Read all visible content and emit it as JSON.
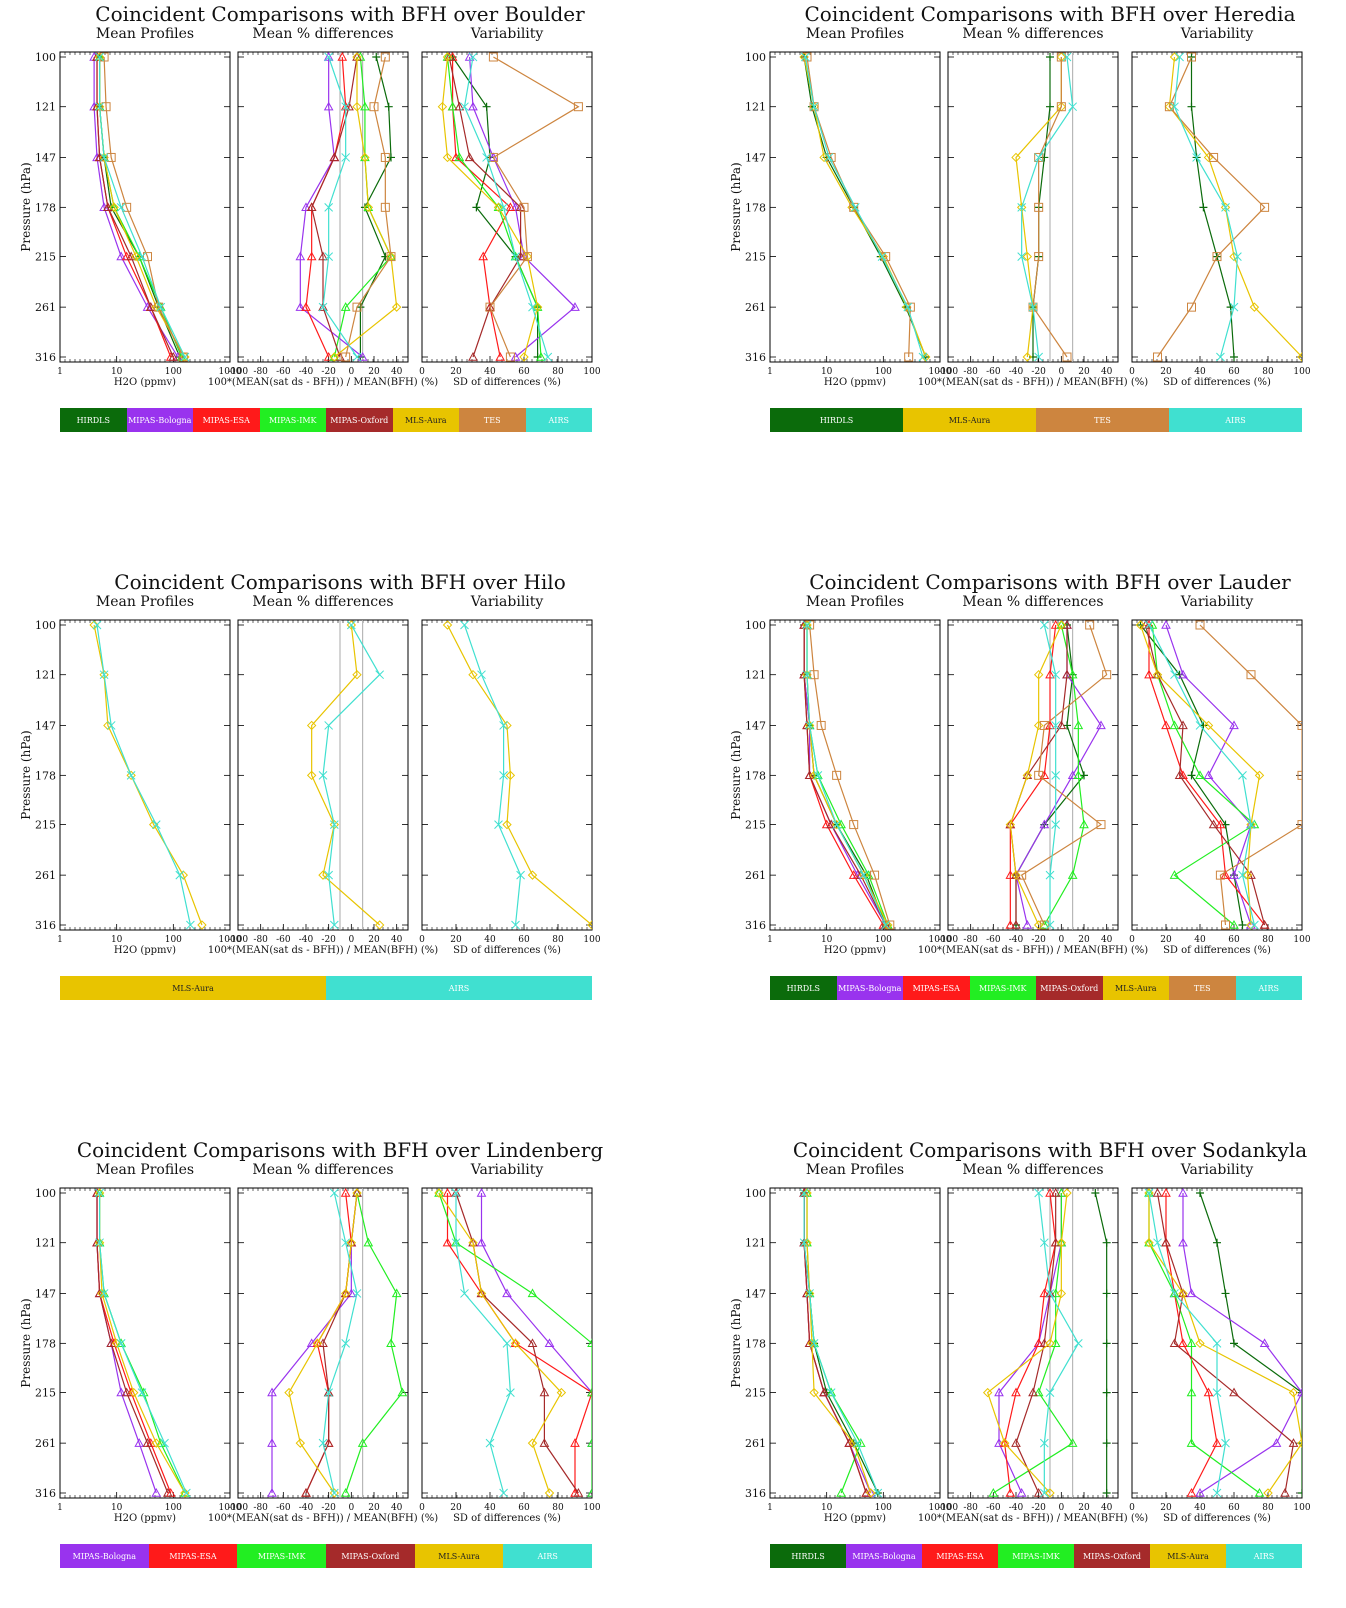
{
  "colors": {
    "HIRDLS": "#0b6b0b",
    "MIPAS-Bologna": "#9933ee",
    "MIPAS-ESA": "#ff1a1a",
    "MIPAS-IMK": "#22ee22",
    "MIPAS-Oxford": "#a52a2a",
    "MLS-Aura": "#e8c400",
    "TES": "#cd853f",
    "AIRS": "#40e0d0"
  },
  "common": {
    "subplot_titles": [
      "Mean Profiles",
      "Mean % differences",
      "Variability"
    ],
    "ylabel": "Pressure (hPa)",
    "xlabels": [
      "H2O (ppmv)",
      "100*(MEAN(sat ds - BFH)) / MEAN(BFH) (%)",
      "SD of differences (%)"
    ],
    "pressure_levels": [
      100,
      121,
      147,
      178,
      215,
      261,
      316
    ],
    "profile_ticks": [
      "1",
      "10",
      "100",
      "1000"
    ],
    "diff_ticks": [
      "-100",
      "-80",
      "-60",
      "-40",
      "-20",
      "0",
      "20",
      "40"
    ],
    "sd_ticks": [
      "0",
      "20",
      "40",
      "60",
      "80",
      "100"
    ]
  },
  "chart_data": [
    {
      "type": "line",
      "title": "Coincident Comparisons with BFH over Boulder",
      "instruments": [
        "HIRDLS",
        "MIPAS-Bologna",
        "MIPAS-ESA",
        "MIPAS-IMK",
        "MIPAS-Oxford",
        "MLS-Aura",
        "TES",
        "AIRS"
      ],
      "y_pressure": [
        100,
        121,
        147,
        178,
        215,
        261,
        316
      ],
      "mean_profiles": {
        "HIRDLS": [
          5,
          5,
          6,
          8,
          25,
          55,
          130
        ],
        "MIPAS-Bologna": [
          4,
          4,
          4.5,
          6,
          12,
          35,
          120
        ],
        "MIPAS-ESA": [
          4.5,
          4.5,
          5,
          7,
          15,
          40,
          90
        ],
        "MIPAS-IMK": [
          5,
          5,
          6,
          9,
          25,
          60,
          140
        ],
        "MIPAS-Oxford": [
          4.5,
          4.5,
          5,
          7,
          18,
          40,
          100
        ],
        "MLS-Aura": [
          5,
          5,
          6,
          9,
          22,
          50,
          160
        ],
        "TES": [
          6,
          6.5,
          8,
          15,
          35,
          55,
          150
        ],
        "AIRS": [
          5,
          5,
          6,
          12,
          28,
          60,
          160
        ]
      },
      "mean_diffs": {
        "HIRDLS": [
          22,
          33,
          35,
          12,
          30,
          8,
          8
        ],
        "MIPAS-Bologna": [
          -20,
          -20,
          -15,
          -40,
          -45,
          -45,
          10
        ],
        "MIPAS-ESA": [
          -8,
          -5,
          -15,
          -35,
          -35,
          -40,
          -20
        ],
        "MIPAS-IMK": [
          8,
          12,
          12,
          15,
          35,
          -5,
          -15
        ],
        "MIPAS-Oxford": [
          5,
          -2,
          -15,
          -35,
          -25,
          -25,
          -10
        ],
        "MLS-Aura": [
          5,
          5,
          12,
          15,
          35,
          40,
          -15
        ],
        "TES": [
          30,
          20,
          30,
          30,
          35,
          5,
          -5
        ],
        "AIRS": [
          -20,
          -5,
          -5,
          -20,
          -20,
          -25,
          5
        ]
      },
      "sd_diffs": {
        "HIRDLS": [
          18,
          38,
          40,
          32,
          55,
          68,
          68
        ],
        "MIPAS-Bologna": [
          28,
          30,
          42,
          55,
          60,
          90,
          55
        ],
        "MIPAS-ESA": [
          18,
          18,
          20,
          52,
          36,
          40,
          46
        ],
        "MIPAS-IMK": [
          15,
          18,
          22,
          45,
          55,
          68,
          70
        ],
        "MIPAS-Oxford": [
          16,
          22,
          28,
          58,
          58,
          40,
          30
        ],
        "MLS-Aura": [
          15,
          12,
          15,
          45,
          62,
          68,
          60
        ],
        "TES": [
          42,
          92,
          42,
          60,
          62,
          40,
          52
        ],
        "AIRS": [
          30,
          25,
          38,
          48,
          55,
          65,
          74
        ]
      }
    },
    {
      "type": "line",
      "title": "Coincident Comparisons with BFH over Heredia",
      "instruments": [
        "HIRDLS",
        "MLS-Aura",
        "TES",
        "AIRS"
      ],
      "y_pressure": [
        100,
        121,
        147,
        178,
        215,
        261,
        316
      ],
      "mean_profiles": {
        "HIRDLS": [
          4,
          5.5,
          10,
          30,
          90,
          250,
          560
        ],
        "MLS-Aura": [
          4,
          6,
          9,
          28,
          100,
          260,
          560
        ],
        "TES": [
          4.5,
          6,
          12,
          30,
          110,
          300,
          280
        ],
        "AIRS": [
          4.2,
          6,
          11,
          32,
          95,
          270,
          500
        ]
      },
      "mean_diffs": {
        "HIRDLS": [
          -10,
          -10,
          -15,
          -20,
          -20,
          -25,
          -25
        ],
        "MLS-Aura": [
          0,
          0,
          -40,
          -35,
          -30,
          -25,
          -30
        ],
        "TES": [
          0,
          0,
          -20,
          -20,
          -20,
          -25,
          5
        ],
        "AIRS": [
          5,
          10,
          -20,
          -35,
          -35,
          -25,
          -20
        ]
      },
      "sd_diffs": {
        "HIRDLS": [
          35,
          35,
          38,
          42,
          50,
          58,
          60
        ],
        "MLS-Aura": [
          25,
          22,
          45,
          55,
          60,
          72,
          100
        ],
        "TES": [
          35,
          22,
          48,
          78,
          50,
          35,
          15
        ],
        "AIRS": [
          28,
          25,
          38,
          55,
          62,
          60,
          52
        ]
      }
    },
    {
      "type": "line",
      "title": "Coincident Comparisons with BFH over Hilo",
      "instruments": [
        "MLS-Aura",
        "AIRS"
      ],
      "y_pressure": [
        100,
        121,
        147,
        178,
        215,
        261,
        316
      ],
      "mean_profiles": {
        "MLS-Aura": [
          4,
          6,
          7,
          18,
          45,
          150,
          320
        ],
        "AIRS": [
          4.5,
          6,
          8,
          18,
          50,
          130,
          200
        ]
      },
      "mean_diffs": {
        "MLS-Aura": [
          0,
          5,
          -35,
          -35,
          -15,
          -25,
          25
        ],
        "AIRS": [
          0,
          25,
          -20,
          -25,
          -15,
          -20,
          -15
        ]
      },
      "sd_diffs": {
        "MLS-Aura": [
          15,
          30,
          50,
          52,
          50,
          65,
          100
        ],
        "AIRS": [
          25,
          35,
          48,
          48,
          45,
          58,
          55
        ]
      }
    },
    {
      "type": "line",
      "title": "Coincident Comparisons with BFH over Lauder",
      "instruments": [
        "HIRDLS",
        "MIPAS-Bologna",
        "MIPAS-ESA",
        "MIPAS-IMK",
        "MIPAS-Oxford",
        "MLS-Aura",
        "TES",
        "AIRS"
      ],
      "y_pressure": [
        100,
        121,
        147,
        178,
        215,
        261,
        316
      ],
      "mean_profiles": {
        "HIRDLS": [
          4,
          4,
          5,
          6,
          15,
          50,
          110
        ],
        "MIPAS-Bologna": [
          4,
          4,
          5,
          5,
          12,
          35,
          110
        ],
        "MIPAS-ESA": [
          4,
          4,
          4.5,
          5,
          10,
          30,
          100
        ],
        "MIPAS-IMK": [
          4.5,
          4.5,
          5,
          7,
          18,
          55,
          120
        ],
        "MIPAS-Oxford": [
          4,
          4,
          4.5,
          5,
          12,
          40,
          110
        ],
        "MLS-Aura": [
          4.5,
          4.5,
          5,
          6,
          15,
          45,
          120
        ],
        "TES": [
          5,
          6,
          8,
          15,
          30,
          70,
          130
        ],
        "AIRS": [
          4.5,
          4.5,
          5,
          7,
          15,
          45,
          110
        ]
      },
      "mean_diffs": {
        "HIRDLS": [
          5,
          10,
          5,
          20,
          -15,
          -40,
          -40
        ],
        "MIPAS-Bologna": [
          5,
          5,
          35,
          10,
          -15,
          -40,
          -30
        ],
        "MIPAS-ESA": [
          -5,
          -10,
          -10,
          -15,
          -45,
          -45,
          -45
        ],
        "MIPAS-IMK": [
          0,
          10,
          15,
          15,
          20,
          10,
          -15
        ],
        "MIPAS-Oxford": [
          5,
          5,
          0,
          -30,
          -45,
          -40,
          -40
        ],
        "MLS-Aura": [
          0,
          -20,
          -20,
          -30,
          -45,
          -40,
          -20
        ],
        "TES": [
          25,
          40,
          -15,
          -20,
          35,
          -35,
          -15
        ],
        "AIRS": [
          -15,
          -5,
          -5,
          -5,
          -5,
          -10,
          -10
        ]
      },
      "sd_diffs": {
        "HIRDLS": [
          5,
          28,
          42,
          35,
          55,
          60,
          65
        ],
        "MIPAS-Bologna": [
          20,
          30,
          60,
          45,
          70,
          60,
          70
        ],
        "MIPAS-ESA": [
          10,
          10,
          20,
          30,
          52,
          55,
          78
        ],
        "MIPAS-IMK": [
          12,
          15,
          25,
          40,
          72,
          25,
          60
        ],
        "MIPAS-Oxford": [
          8,
          15,
          30,
          28,
          48,
          70,
          78
        ],
        "MLS-Aura": [
          5,
          15,
          45,
          75,
          70,
          68,
          70
        ],
        "TES": [
          40,
          70,
          100,
          100,
          100,
          52,
          55
        ],
        "AIRS": [
          10,
          25,
          40,
          65,
          70,
          65,
          72
        ]
      }
    },
    {
      "type": "line",
      "title": "Coincident Comparisons with BFH over Lindenberg",
      "instruments": [
        "MIPAS-Bologna",
        "MIPAS-ESA",
        "MIPAS-IMK",
        "MIPAS-Oxford",
        "MLS-Aura",
        "AIRS"
      ],
      "y_pressure": [
        100,
        121,
        147,
        178,
        215,
        261,
        316
      ],
      "mean_profiles": {
        "MIPAS-Bologna": [
          4.5,
          4.5,
          5,
          8,
          12,
          25,
          50
        ],
        "MIPAS-ESA": [
          4.5,
          4.5,
          5,
          9,
          18,
          40,
          90
        ],
        "MIPAS-IMK": [
          5,
          5,
          6,
          12,
          30,
          60,
          160
        ],
        "MIPAS-Oxford": [
          4.5,
          4.5,
          5,
          8,
          15,
          35,
          80
        ],
        "MLS-Aura": [
          5,
          5,
          5.5,
          10,
          20,
          50,
          160
        ],
        "AIRS": [
          5,
          5,
          6,
          12,
          28,
          70,
          170
        ]
      },
      "mean_diffs": {
        "MIPAS-Bologna": [
          5,
          0,
          0,
          -35,
          -70,
          -70,
          -70
        ],
        "MIPAS-ESA": [
          -5,
          0,
          -5,
          -30,
          -20,
          -20,
          -40
        ],
        "MIPAS-IMK": [
          5,
          15,
          40,
          35,
          45,
          10,
          -5
        ],
        "MIPAS-Oxford": [
          5,
          0,
          -5,
          -25,
          -20,
          -20,
          -40
        ],
        "MLS-Aura": [
          5,
          0,
          -5,
          -30,
          -55,
          -45,
          -15
        ],
        "AIRS": [
          -15,
          -5,
          5,
          -5,
          -20,
          -25,
          -15
        ]
      },
      "sd_diffs": {
        "MIPAS-Bologna": [
          35,
          35,
          50,
          75,
          100,
          100,
          100
        ],
        "MIPAS-ESA": [
          15,
          15,
          35,
          55,
          100,
          90,
          90
        ],
        "MIPAS-IMK": [
          10,
          20,
          65,
          100,
          100,
          100,
          100
        ],
        "MIPAS-Oxford": [
          20,
          30,
          35,
          65,
          72,
          72,
          92
        ],
        "MLS-Aura": [
          10,
          30,
          35,
          55,
          82,
          65,
          75
        ],
        "AIRS": [
          20,
          20,
          25,
          50,
          52,
          40,
          48
        ]
      }
    },
    {
      "type": "line",
      "title": "Coincident Comparisons with BFH over Sodankyla",
      "instruments": [
        "HIRDLS",
        "MIPAS-Bologna",
        "MIPAS-ESA",
        "MIPAS-IMK",
        "MIPAS-Oxford",
        "MLS-Aura",
        "AIRS"
      ],
      "y_pressure": [
        100,
        121,
        147,
        178,
        215,
        261,
        316
      ],
      "mean_profiles": {
        "HIRDLS": [
          4,
          4,
          5,
          6,
          10,
          30,
          80
        ],
        "MIPAS-Bologna": [
          4,
          4,
          4.5,
          5,
          9,
          25,
          60
        ],
        "MIPAS-ESA": [
          4,
          4,
          4.5,
          5,
          9,
          25,
          50
        ],
        "MIPAS-IMK": [
          4.5,
          4.5,
          5,
          6,
          12,
          40,
          18
        ],
        "MIPAS-Oxford": [
          4,
          4,
          4.5,
          5,
          9,
          25,
          50
        ],
        "MLS-Aura": [
          4.5,
          4.5,
          5,
          5.5,
          6,
          30,
          60
        ],
        "AIRS": [
          4,
          4,
          5,
          6,
          12,
          35,
          80
        ]
      },
      "mean_diffs": {
        "HIRDLS": [
          30,
          40,
          40,
          40,
          40,
          40,
          40
        ],
        "MIPAS-Bologna": [
          0,
          0,
          -10,
          -20,
          -55,
          -55,
          -35
        ],
        "MIPAS-ESA": [
          -10,
          -5,
          -15,
          -20,
          -40,
          -50,
          -45
        ],
        "MIPAS-IMK": [
          0,
          0,
          -5,
          -5,
          -20,
          10,
          -60
        ],
        "MIPAS-Oxford": [
          -5,
          -5,
          -10,
          -15,
          -25,
          -40,
          -20
        ],
        "MLS-Aura": [
          5,
          0,
          0,
          -10,
          -65,
          -50,
          -10
        ],
        "AIRS": [
          -20,
          -15,
          -10,
          15,
          -10,
          -15,
          -15
        ]
      },
      "sd_diffs": {
        "HIRDLS": [
          40,
          50,
          55,
          60,
          100,
          100,
          100
        ],
        "MIPAS-Bologna": [
          30,
          30,
          35,
          78,
          100,
          85,
          40
        ],
        "MIPAS-ESA": [
          20,
          20,
          25,
          30,
          45,
          50,
          35
        ],
        "MIPAS-IMK": [
          10,
          10,
          25,
          35,
          35,
          35,
          75
        ],
        "MIPAS-Oxford": [
          15,
          20,
          30,
          25,
          60,
          95,
          90
        ],
        "MLS-Aura": [
          10,
          10,
          30,
          40,
          95,
          100,
          80
        ],
        "AIRS": [
          10,
          15,
          25,
          50,
          50,
          55,
          50
        ]
      }
    }
  ]
}
